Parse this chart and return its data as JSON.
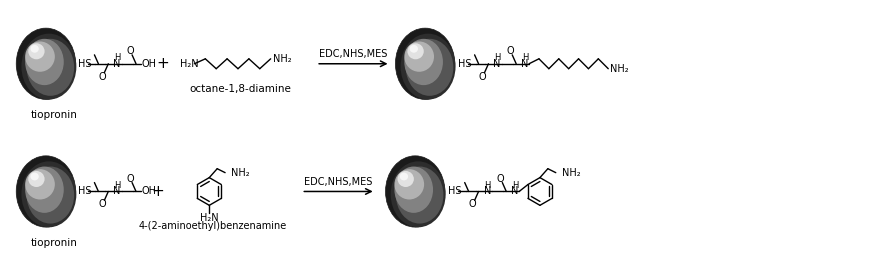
{
  "bg_color": "#ffffff",
  "line_color": "#000000",
  "fig_width": 8.7,
  "fig_height": 2.78,
  "dpi": 100,
  "label_tiopronin1": "tiopronin",
  "label_tiopronin2": "tiopronin",
  "label_diamine": "octane-1,8-diamine",
  "label_benzenamine": "4-(2-aminoethyl)benzenamine",
  "label_reagents1": "EDC,NHS,MES",
  "label_reagents2": "EDC,NHS,MES"
}
